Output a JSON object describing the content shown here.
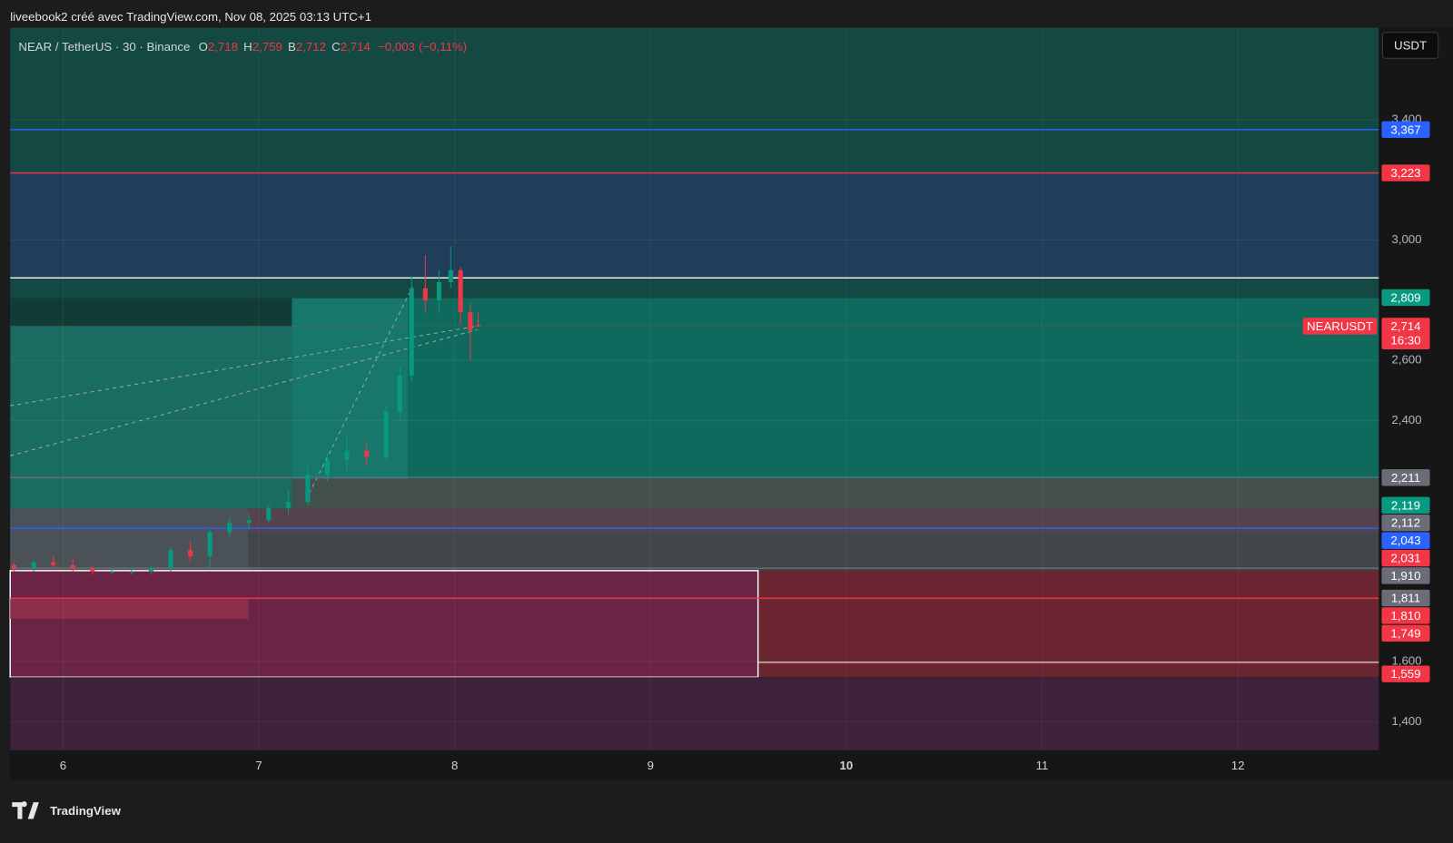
{
  "header": {
    "text": "liveebook2 créé avec TradingView.com, Nov 08, 2025 03:13 UTC+1"
  },
  "branding": {
    "text": "TradingView"
  },
  "chart_data": {
    "type": "candlestick",
    "title": "NEAR / TetherUS · 30 · Binance",
    "legend": [
      {
        "key": "O",
        "value": 2.718,
        "label": "2,718"
      },
      {
        "key": "H",
        "value": 2.759,
        "label": "2,759"
      },
      {
        "key": "B",
        "value": 2.712,
        "label": "2,712"
      },
      {
        "key": "C",
        "value": 2.714,
        "label": "2,714"
      }
    ],
    "change": {
      "value": -0.003,
      "label": "−0,003"
    },
    "change_pct": {
      "value": -0.11,
      "label": "(−0,11%)"
    },
    "currency": "USDT",
    "x": [
      5.75,
      5.85,
      5.95,
      6.05,
      6.15,
      6.25,
      6.35,
      6.45,
      6.55,
      6.65,
      6.75,
      6.85,
      6.95,
      7.05,
      7.15,
      7.25,
      7.35,
      7.45,
      7.55,
      7.65,
      7.72,
      7.78,
      7.85,
      7.92,
      7.98,
      8.03,
      8.08,
      8.12
    ],
    "open": [
      1.92,
      1.91,
      1.93,
      1.92,
      1.91,
      1.9,
      1.9,
      1.9,
      1.91,
      1.97,
      1.95,
      2.03,
      2.06,
      2.07,
      2.11,
      2.13,
      2.22,
      2.27,
      2.3,
      2.28,
      2.43,
      2.55,
      2.84,
      2.8,
      2.86,
      2.9,
      2.76,
      2.718
    ],
    "high": [
      1.93,
      1.94,
      1.95,
      1.94,
      1.92,
      1.91,
      1.91,
      1.92,
      1.98,
      2.0,
      2.04,
      2.08,
      2.09,
      2.12,
      2.17,
      2.26,
      2.29,
      2.35,
      2.33,
      2.45,
      2.58,
      2.88,
      2.95,
      2.9,
      2.98,
      2.91,
      2.79,
      2.759
    ],
    "low": [
      1.9,
      1.9,
      1.91,
      1.9,
      1.89,
      1.89,
      1.89,
      1.89,
      1.9,
      1.93,
      1.91,
      2.01,
      2.04,
      2.06,
      2.09,
      2.12,
      2.2,
      2.23,
      2.25,
      2.27,
      2.4,
      2.53,
      2.76,
      2.76,
      2.84,
      2.72,
      2.6,
      2.712
    ],
    "close": [
      1.91,
      1.93,
      1.92,
      1.91,
      1.9,
      1.9,
      1.9,
      1.91,
      1.97,
      1.95,
      2.03,
      2.06,
      2.07,
      2.11,
      2.13,
      2.22,
      2.27,
      2.3,
      2.28,
      2.43,
      2.55,
      2.84,
      2.8,
      2.86,
      2.9,
      2.76,
      2.7,
      2.714
    ],
    "up_color": "#089981",
    "down_color": "#f23645",
    "xlim": [
      5.73,
      12.72
    ],
    "xticks": [
      6,
      7,
      8,
      9,
      10,
      11,
      12
    ],
    "xtick_bold": [
      false,
      false,
      false,
      false,
      true,
      false,
      false
    ],
    "ylim": [
      1.305,
      3.705
    ],
    "yticks": [
      {
        "value": 3.4,
        "label": "3,400"
      },
      {
        "value": 3.0,
        "label": "3,000"
      },
      {
        "value": 2.6,
        "label": "2,600"
      },
      {
        "value": 2.4,
        "label": "2,400"
      },
      {
        "value": 1.6,
        "label": "1,600"
      },
      {
        "value": 1.4,
        "label": "1,400"
      }
    ],
    "grid": true,
    "current_price": {
      "name": "NEARUSDT",
      "value": 2.714,
      "label": "2,714",
      "countdown": "16:30",
      "color": "#f23645"
    },
    "price_levels": [
      {
        "value": 3.367,
        "label": "3,367",
        "color": "#2962ff",
        "line": true
      },
      {
        "value": 3.223,
        "label": "3,223",
        "color": "#f23645",
        "line": true
      },
      {
        "value": 2.809,
        "label": "2,809",
        "color": "#089981",
        "line": false
      },
      {
        "value": 2.211,
        "label": "2,211",
        "color": "#6a6d78",
        "line": true
      },
      {
        "value": 2.119,
        "label": "2,119",
        "color": "#089981",
        "line": false
      },
      {
        "value": 2.112,
        "label": "2,112",
        "color": "#6a6d78",
        "line": false
      },
      {
        "value": 2.043,
        "label": "2,043",
        "color": "#2962ff",
        "line": true
      },
      {
        "value": 2.031,
        "label": "2,031",
        "color": "#f23645",
        "line": false
      },
      {
        "value": 1.91,
        "label": "1,910",
        "color": "#6a6d78",
        "line": true
      },
      {
        "value": 1.811,
        "label": "1,811",
        "color": "#6a6d78",
        "line": false
      },
      {
        "value": 1.81,
        "label": "1,810",
        "color": "#f23645",
        "line": true
      },
      {
        "value": 1.749,
        "label": "1,749",
        "color": "#f23645",
        "line": false
      },
      {
        "value": 1.559,
        "label": "1,559",
        "color": "#f23645",
        "line": false
      }
    ]
  }
}
